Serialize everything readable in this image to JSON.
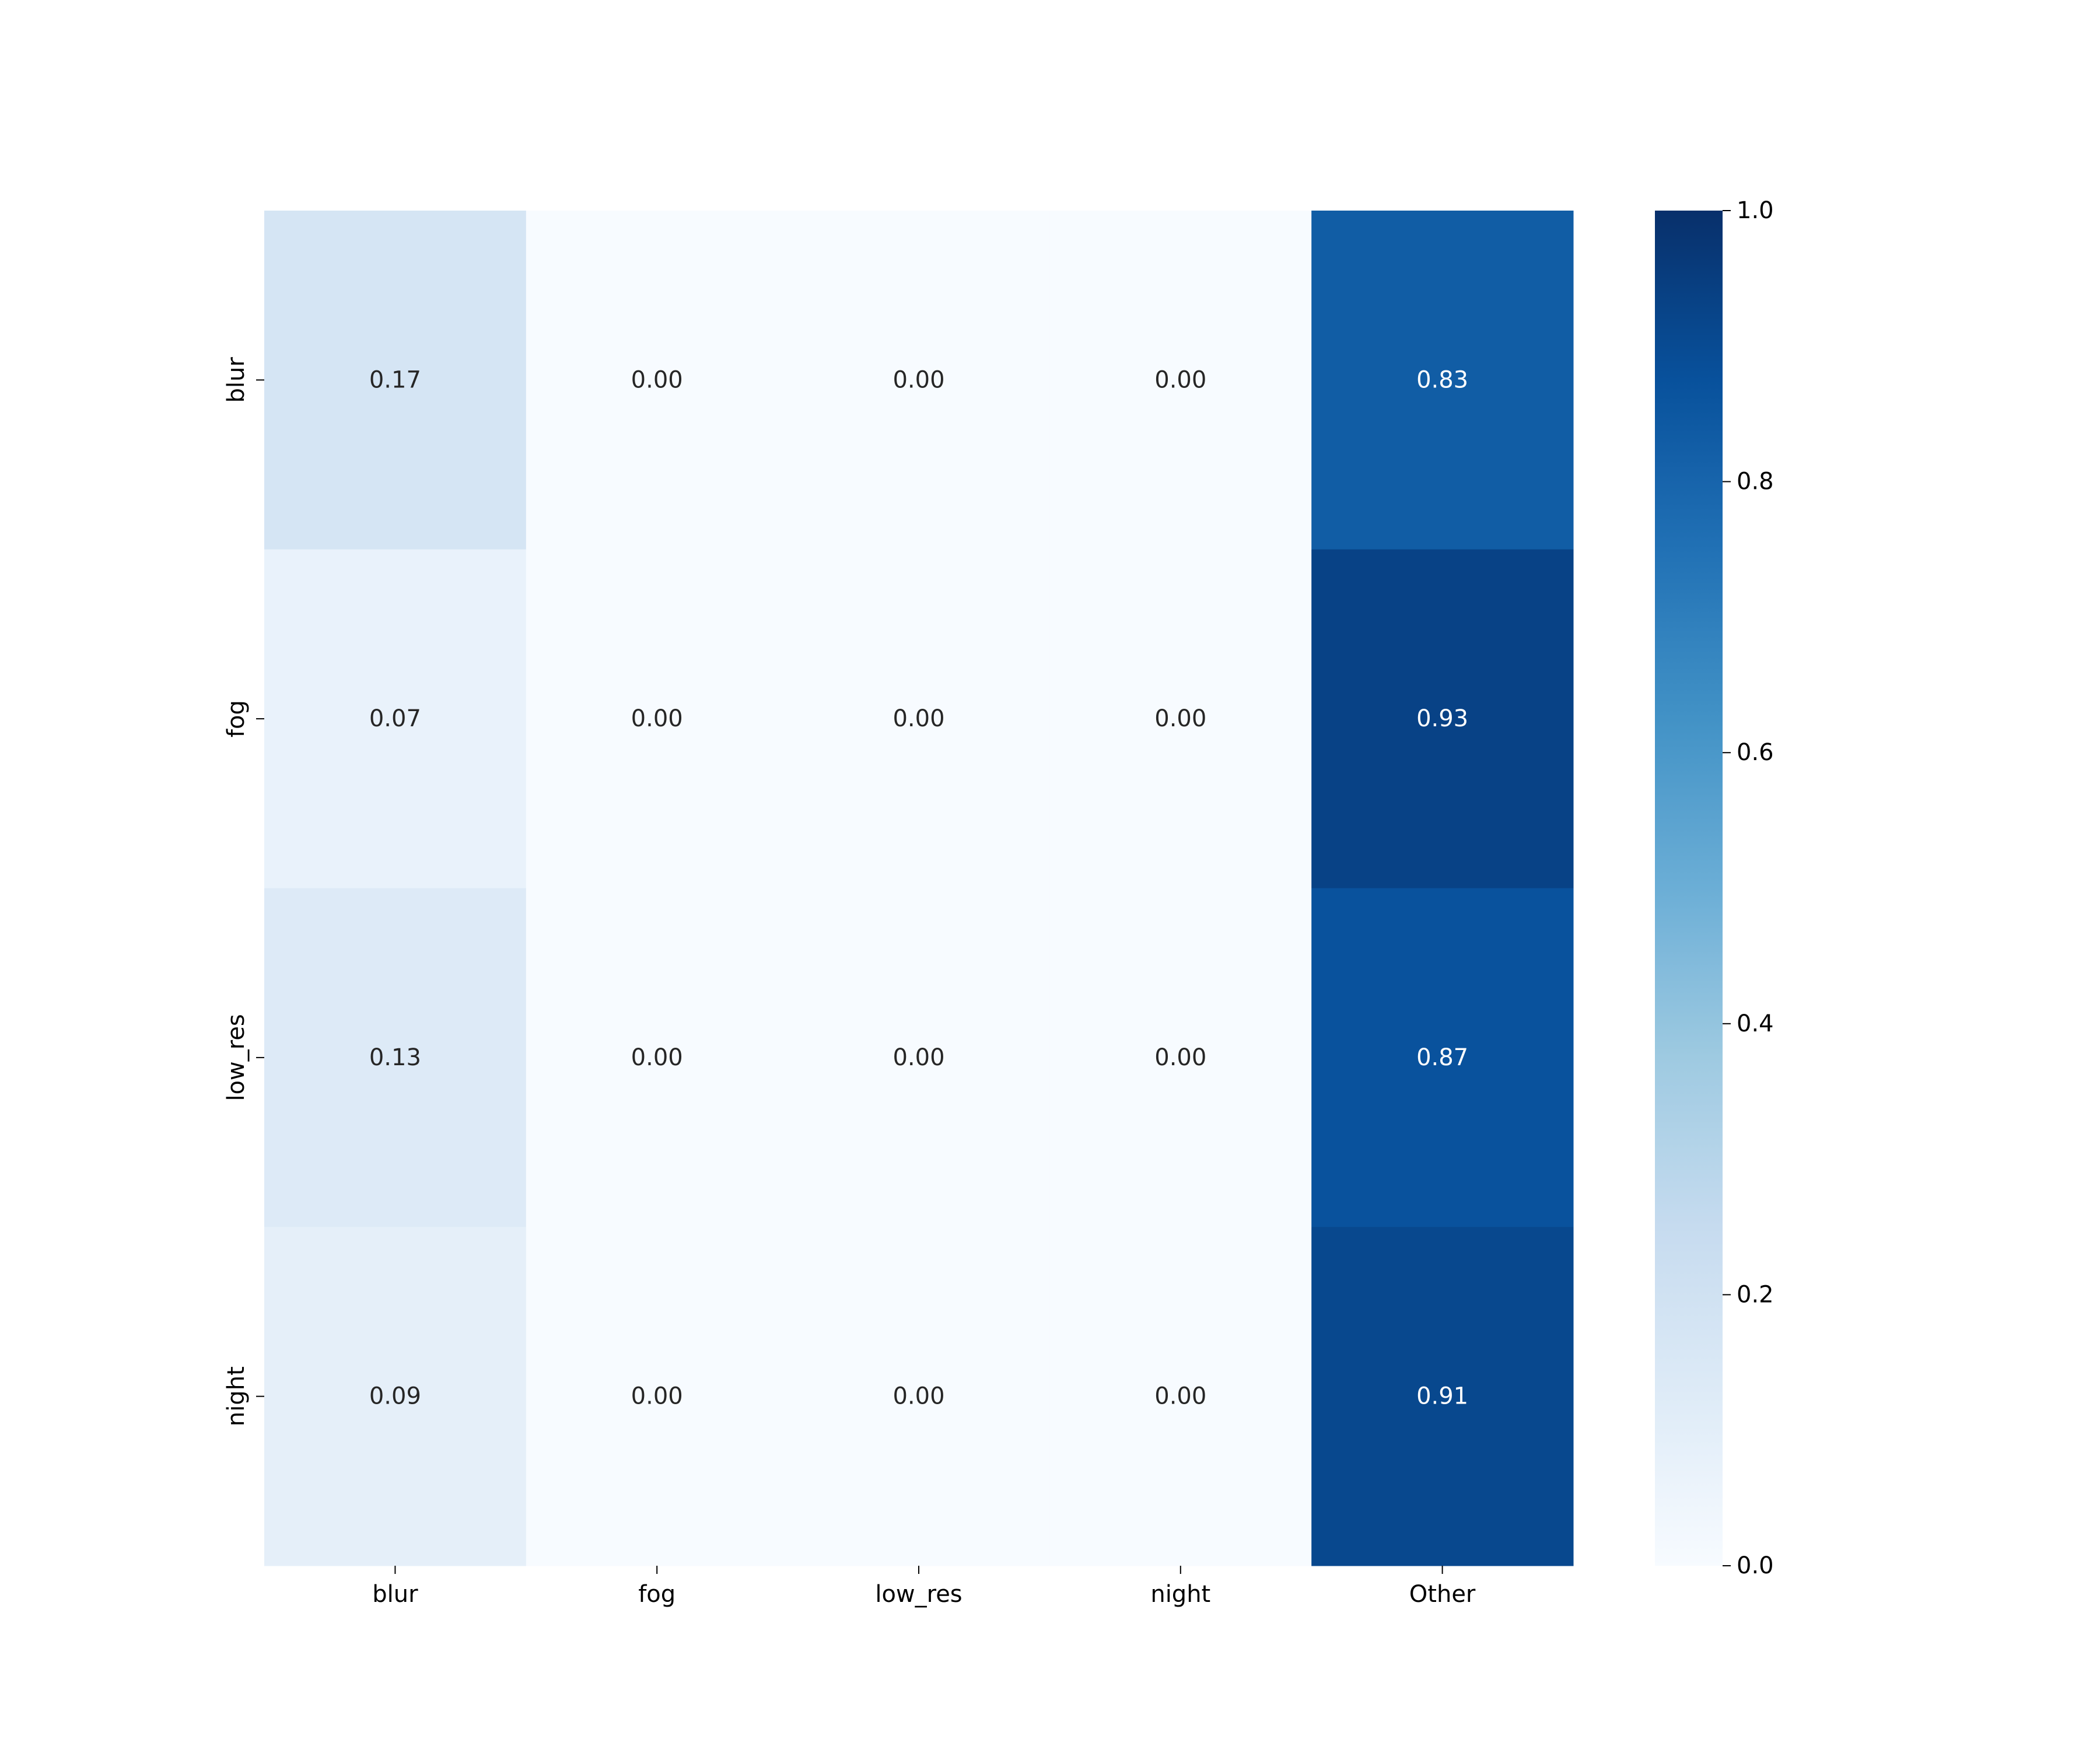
{
  "chart_data": {
    "type": "heatmap",
    "title": "",
    "xlabel": "",
    "ylabel": "",
    "x_categories": [
      "blur",
      "fog",
      "low_res",
      "night",
      "Other"
    ],
    "y_categories": [
      "blur",
      "fog",
      "low_res",
      "night"
    ],
    "values": [
      [
        0.17,
        0.0,
        0.0,
        0.0,
        0.83
      ],
      [
        0.07,
        0.0,
        0.0,
        0.0,
        0.93
      ],
      [
        0.13,
        0.0,
        0.0,
        0.0,
        0.87
      ],
      [
        0.09,
        0.0,
        0.0,
        0.0,
        0.91
      ]
    ],
    "cell_labels": [
      [
        "0.17",
        "0.00",
        "0.00",
        "0.00",
        "0.83"
      ],
      [
        "0.07",
        "0.00",
        "0.00",
        "0.00",
        "0.93"
      ],
      [
        "0.13",
        "0.00",
        "0.00",
        "0.00",
        "0.87"
      ],
      [
        "0.09",
        "0.00",
        "0.00",
        "0.00",
        "0.91"
      ]
    ],
    "colormap": "Blues",
    "vmin": 0.0,
    "vmax": 1.0,
    "colorbar": {
      "ticks": [
        0.0,
        0.2,
        0.4,
        0.6,
        0.8,
        1.0
      ],
      "tick_labels": [
        "0.0",
        "0.2",
        "0.4",
        "0.6",
        "0.8",
        "1.0"
      ]
    },
    "grid": false,
    "colors": {
      "light_text": "#ffffff",
      "dark_text": "#262626",
      "axis": "#000000"
    }
  }
}
